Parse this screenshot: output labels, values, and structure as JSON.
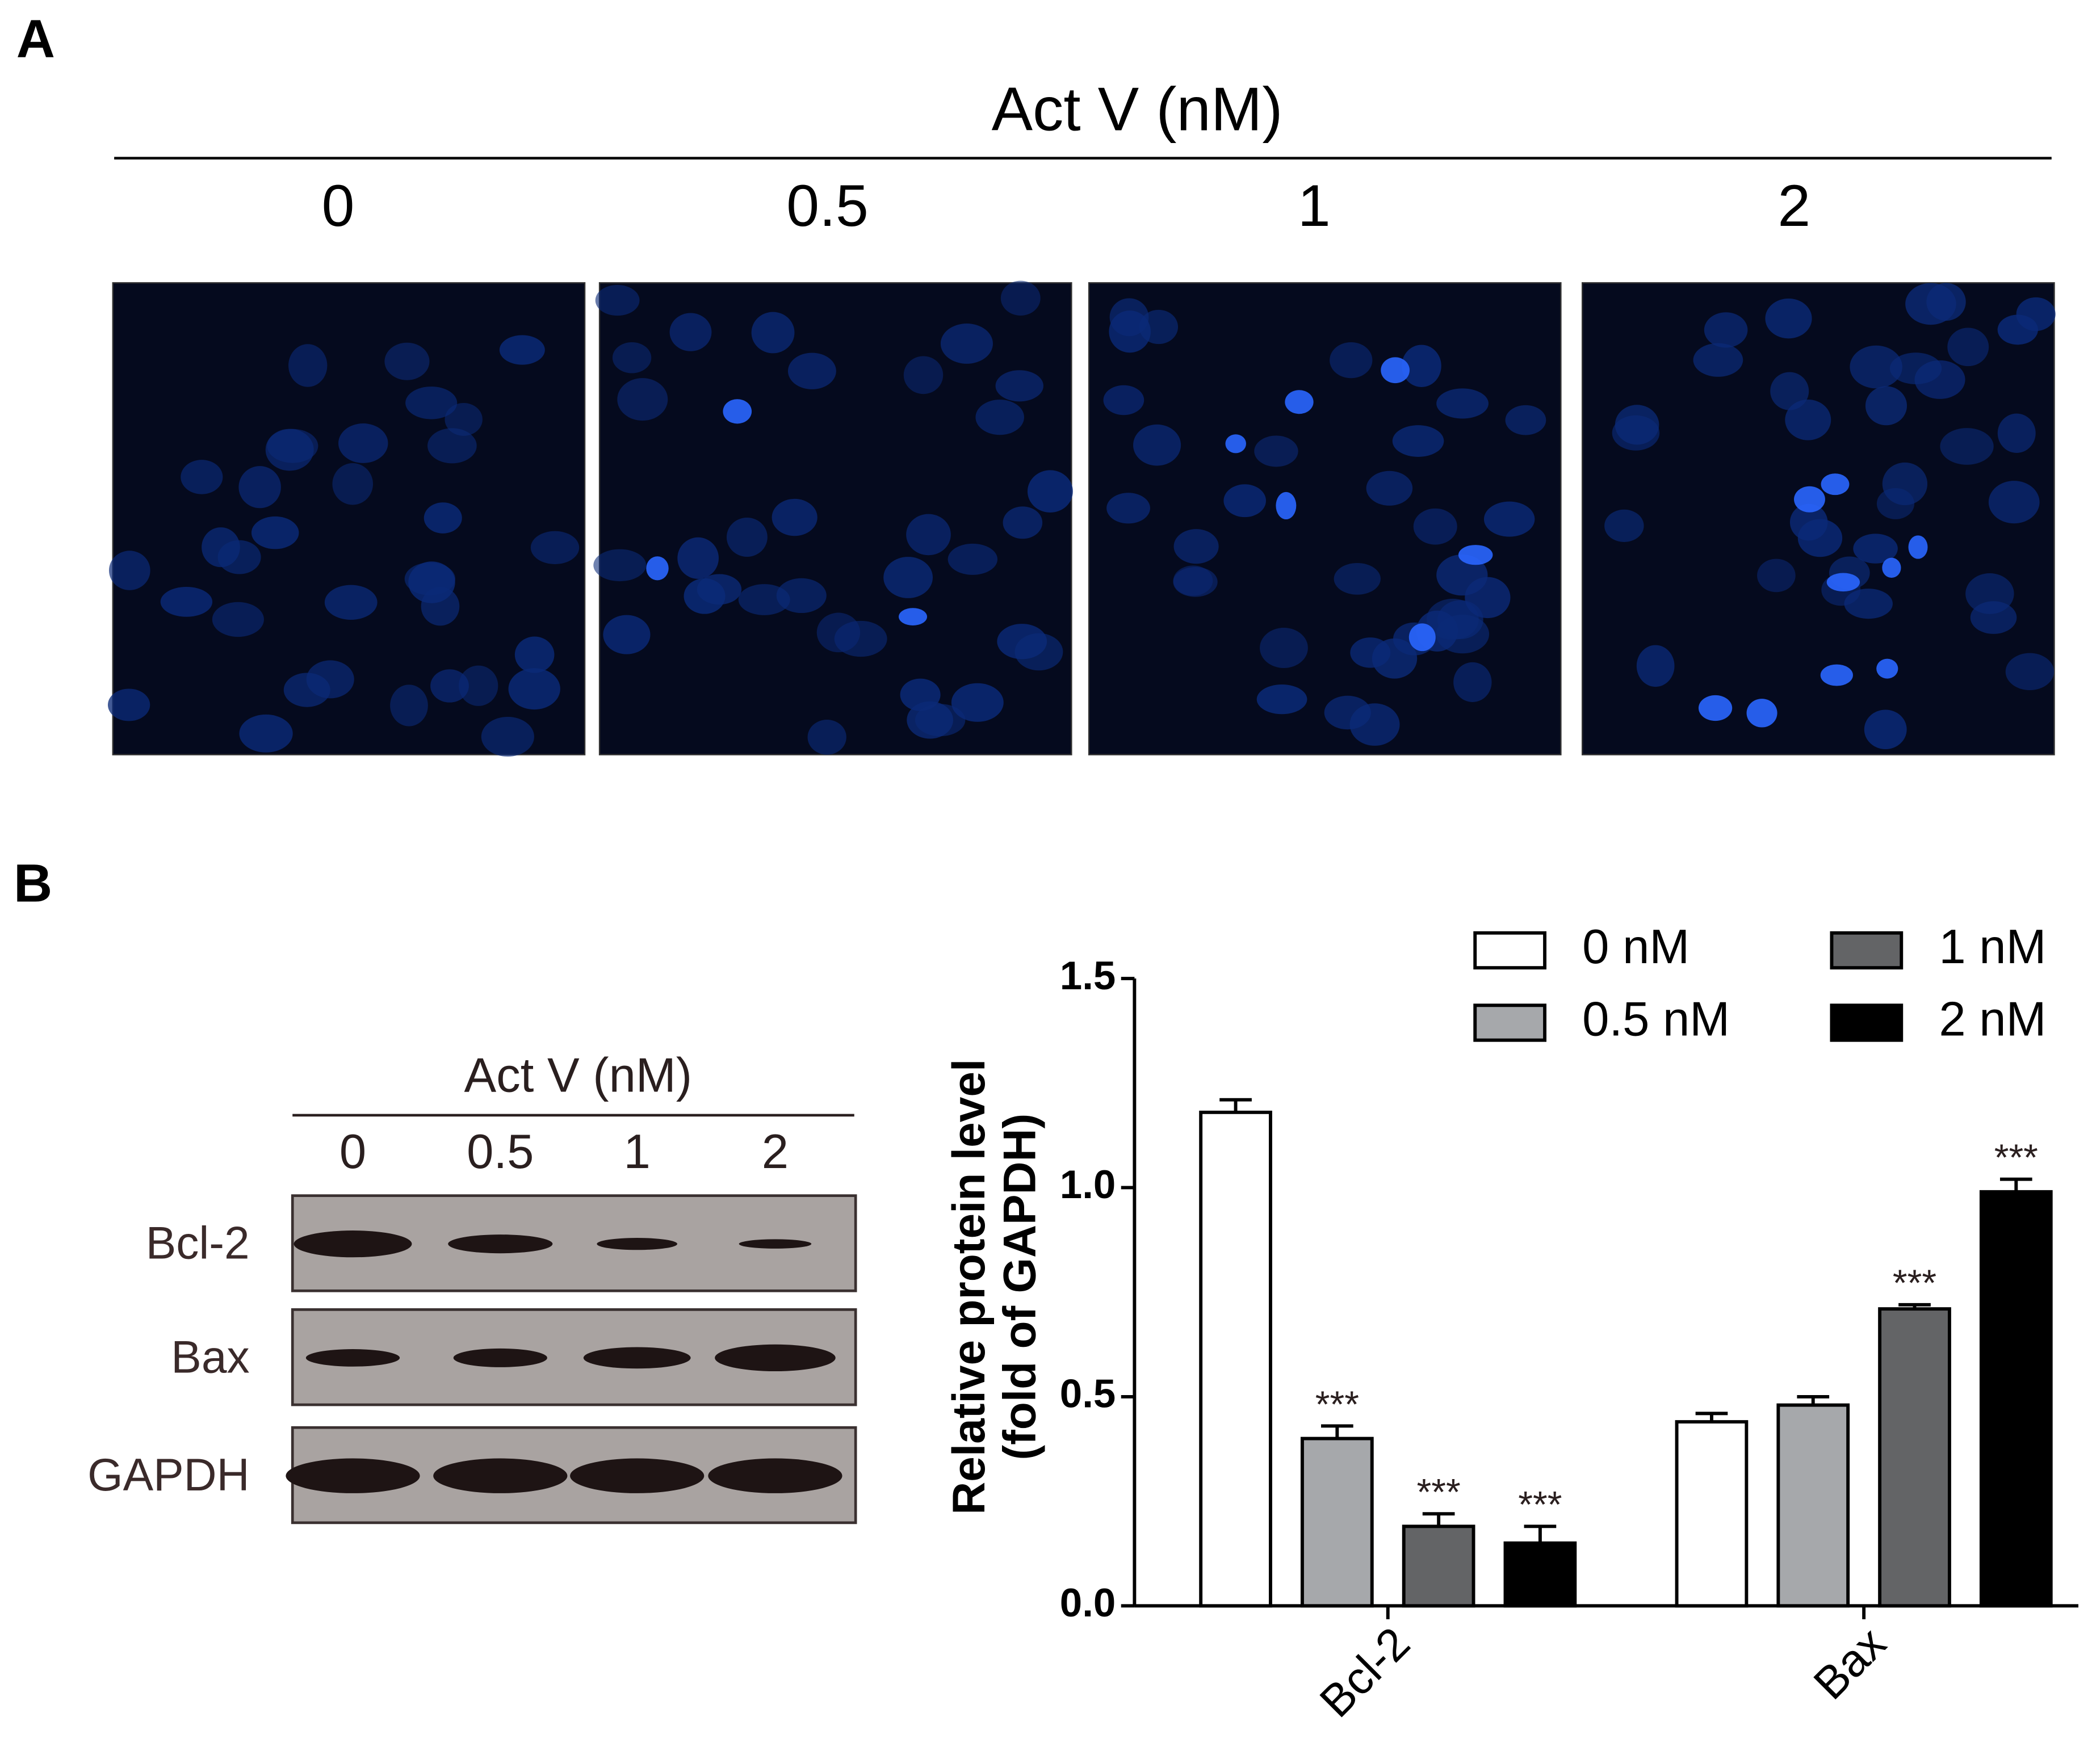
{
  "panel_a": {
    "label": "A",
    "title": "Act V (nM)",
    "columns": [
      "0",
      "0.5",
      "1",
      "2"
    ]
  },
  "panel_b": {
    "label": "B",
    "blot": {
      "title": "Act V (nM)",
      "columns": [
        "0",
        "0.5",
        "1",
        "2"
      ],
      "rows": [
        "Bcl-2",
        "Bax",
        "GAPDH"
      ]
    }
  },
  "chart_data": {
    "type": "bar",
    "y_label": [
      "Relative protein level",
      "(fold of GAPDH)"
    ],
    "categories": [
      "Bcl-2",
      "Bax"
    ],
    "series": [
      {
        "name": "0 nM",
        "color": "#ffffff",
        "values": [
          1.18,
          0.44
        ],
        "errors": [
          0.03,
          0.02
        ]
      },
      {
        "name": "0.5 nM",
        "color": "#a6a8ab",
        "values": [
          0.4,
          0.48
        ],
        "errors": [
          0.03,
          0.02
        ],
        "annotations": [
          "***",
          null
        ]
      },
      {
        "name": "1 nM",
        "color": "#636466",
        "values": [
          0.19,
          0.71
        ],
        "errors": [
          0.03,
          0.01
        ],
        "annotations": [
          "***",
          "***"
        ]
      },
      {
        "name": "2 nM",
        "color": "#000000",
        "values": [
          0.15,
          0.99
        ],
        "errors": [
          0.04,
          0.03
        ],
        "annotations": [
          "***",
          "***"
        ]
      }
    ],
    "ylim": [
      0,
      1.5
    ],
    "yticks": [
      {
        "value": 0,
        "label": "0.0"
      },
      {
        "value": 0.5,
        "label": "0.5"
      },
      {
        "value": 1,
        "label": "1.0"
      },
      {
        "value": 1.5,
        "label": "1.5"
      }
    ]
  }
}
